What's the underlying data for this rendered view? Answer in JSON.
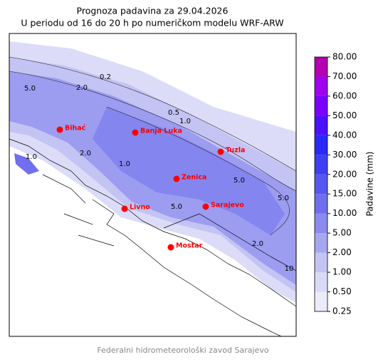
{
  "title": "Prognoza padavina za 29.04.2026",
  "subtitle": "U periodu od 16 do 20 h po numeričkom modelu WRF-ARW",
  "cities": [
    "Bihać",
    "Banja Luka",
    "Tuzla",
    "Zenica",
    "Livno",
    "Sarajevo",
    "Mostar"
  ],
  "contour_labels": [
    "0.2",
    "5.0",
    "2.0",
    "0.5",
    "1.0",
    "1.0",
    "2.0",
    "1.0",
    "5.0",
    "5.0",
    "5.0",
    "2.0",
    "10"
  ],
  "colorbar": {
    "label": "Padavine (mm)",
    "ticks": [
      {
        "value": 0.25,
        "label": "0.25"
      },
      {
        "value": 0.5,
        "label": "0.50"
      },
      {
        "value": 1,
        "label": "1.00"
      },
      {
        "value": 2,
        "label": "2.00"
      },
      {
        "value": 5,
        "label": "5.00"
      },
      {
        "value": 10,
        "label": "10.00"
      },
      {
        "value": 15,
        "label": "15.00"
      },
      {
        "value": 20,
        "label": "20.00"
      },
      {
        "value": 30,
        "label": "30.00"
      },
      {
        "value": 40,
        "label": "40.00"
      },
      {
        "value": 50,
        "label": "50.00"
      },
      {
        "value": 60,
        "label": "60.00"
      },
      {
        "value": 70,
        "label": "70.00"
      },
      {
        "value": 80,
        "label": "80.00"
      }
    ],
    "colors": [
      "#ebebfb",
      "#d9d9f8",
      "#c3c3f4",
      "#a6a6f1",
      "#8a8aef",
      "#6e6eee",
      "#5656f0",
      "#3e3ef4",
      "#2a2af8",
      "#4a10ff",
      "#7a00ff",
      "#a000f0",
      "#b400b0"
    ]
  },
  "footer": "Federalni hidrometeorološki zavod Sarajevo"
}
